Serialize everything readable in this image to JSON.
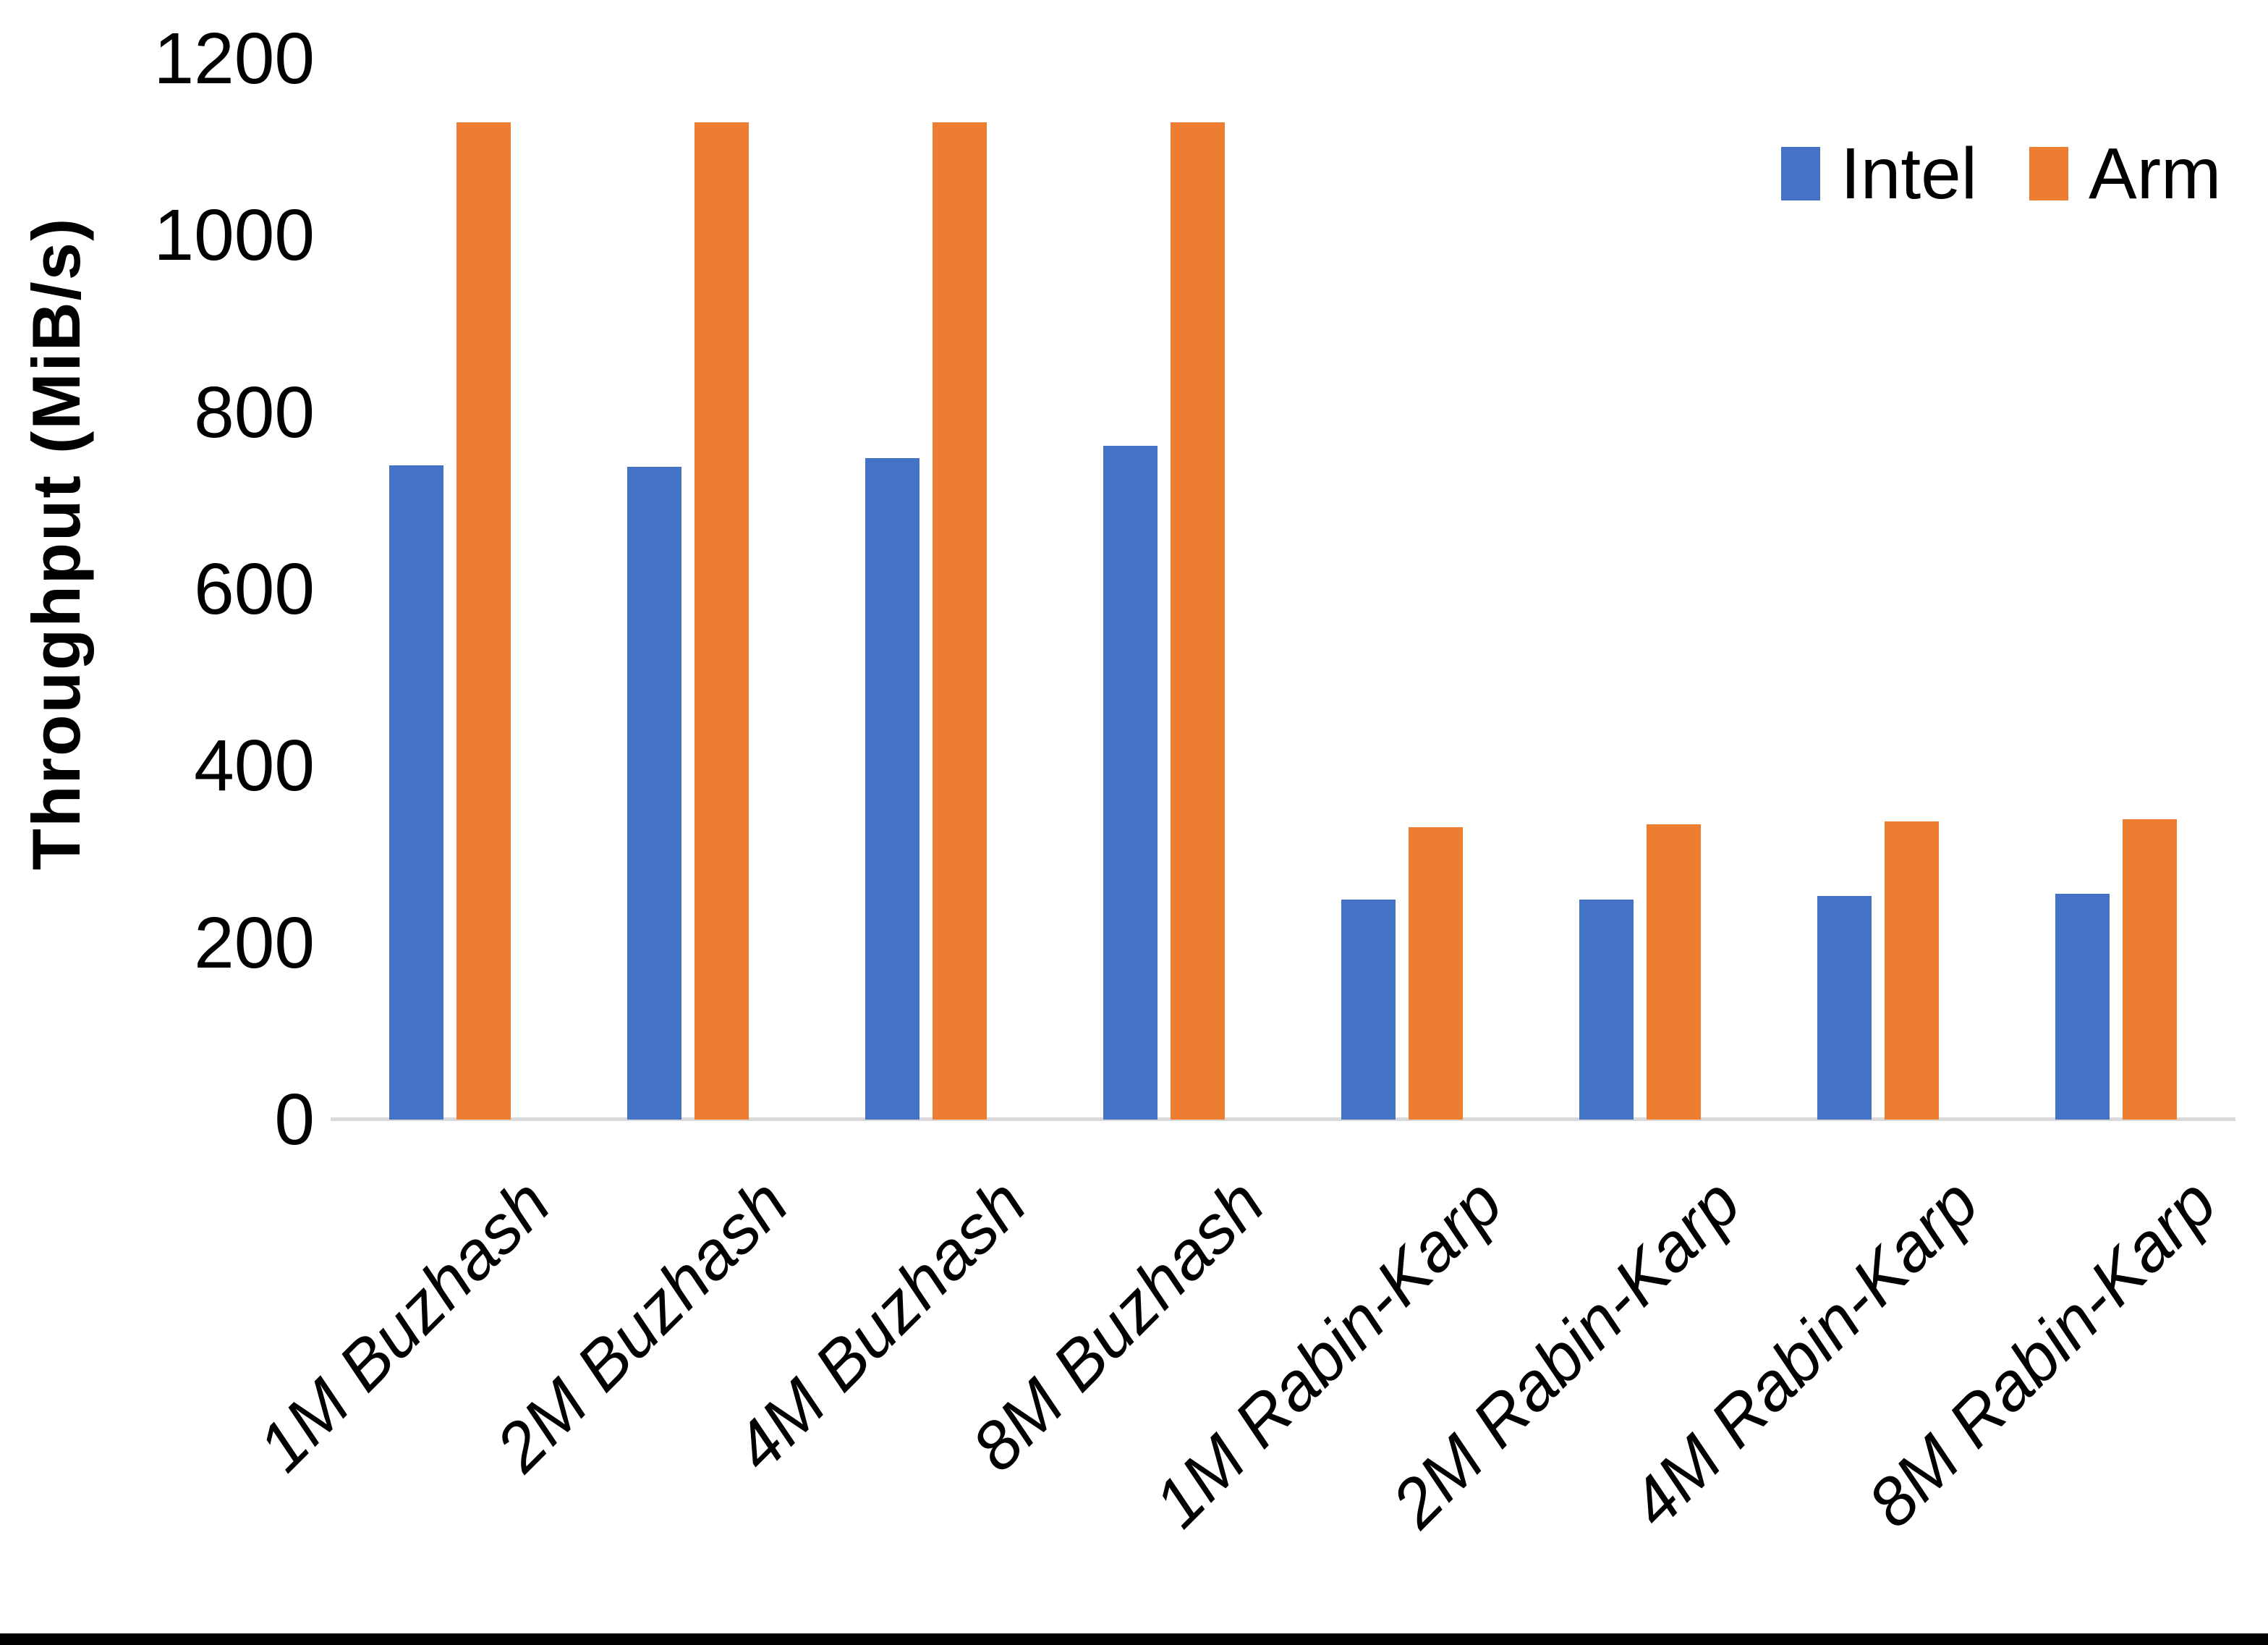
{
  "chart_data": {
    "type": "bar",
    "title": "",
    "xlabel": "",
    "ylabel": "Throughput (MiB/s)",
    "ylim": [
      0,
      1200
    ],
    "yticks": [
      0,
      200,
      400,
      600,
      800,
      1000,
      1200
    ],
    "grid": false,
    "legend_position": "top-right",
    "axis_line_color": "#d9d9d9",
    "categories": [
      "1M Buzhash",
      "2M Buzhash",
      "4M Buzhash",
      "8M Buzhash",
      "1M Rabin-Karp",
      "2M Rabin-Karp",
      "4M Rabin-Karp",
      "8M Rabin-Karp"
    ],
    "series": [
      {
        "name": "Intel",
        "color": "#4472C4",
        "values": [
          740,
          738,
          748,
          762,
          249,
          249,
          253,
          255
        ]
      },
      {
        "name": "Arm",
        "color": "#ED7D31",
        "values": [
          1128,
          1128,
          1128,
          1128,
          331,
          334,
          337,
          340
        ]
      }
    ]
  }
}
